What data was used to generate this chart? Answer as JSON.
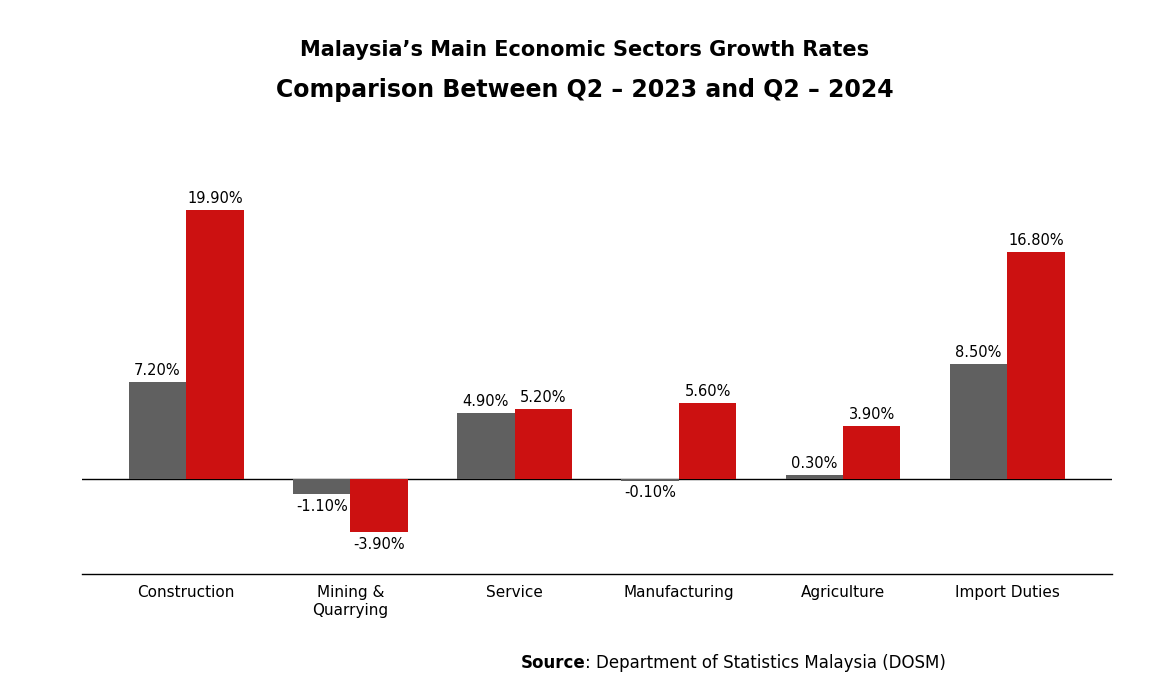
{
  "title_line1": "Malaysia’s Main Economic Sectors Growth Rates",
  "title_line2": "Comparison Between Q2 – 2023 and Q2 – 2024",
  "categories": [
    "Construction",
    "Mining &\nQuarrying",
    "Service",
    "Manufacturing",
    "Agriculture",
    "Import Duties"
  ],
  "q3_2023": [
    7.2,
    -1.1,
    4.9,
    -0.1,
    0.3,
    8.5
  ],
  "q3_2024": [
    19.9,
    -3.9,
    5.2,
    5.6,
    3.9,
    16.8
  ],
  "color_2023": "#606060",
  "color_2024": "#cc1111",
  "source_bold": "Source",
  "source_normal": ": Department of Statistics Malaysia (DOSM)",
  "bar_width": 0.35,
  "ylim": [
    -7,
    23
  ],
  "background_color": "#ffffff",
  "label_fontsize": 10.5,
  "title_fontsize_line1": 15,
  "title_fontsize_line2": 17,
  "category_fontsize": 11,
  "source_fontsize": 12
}
